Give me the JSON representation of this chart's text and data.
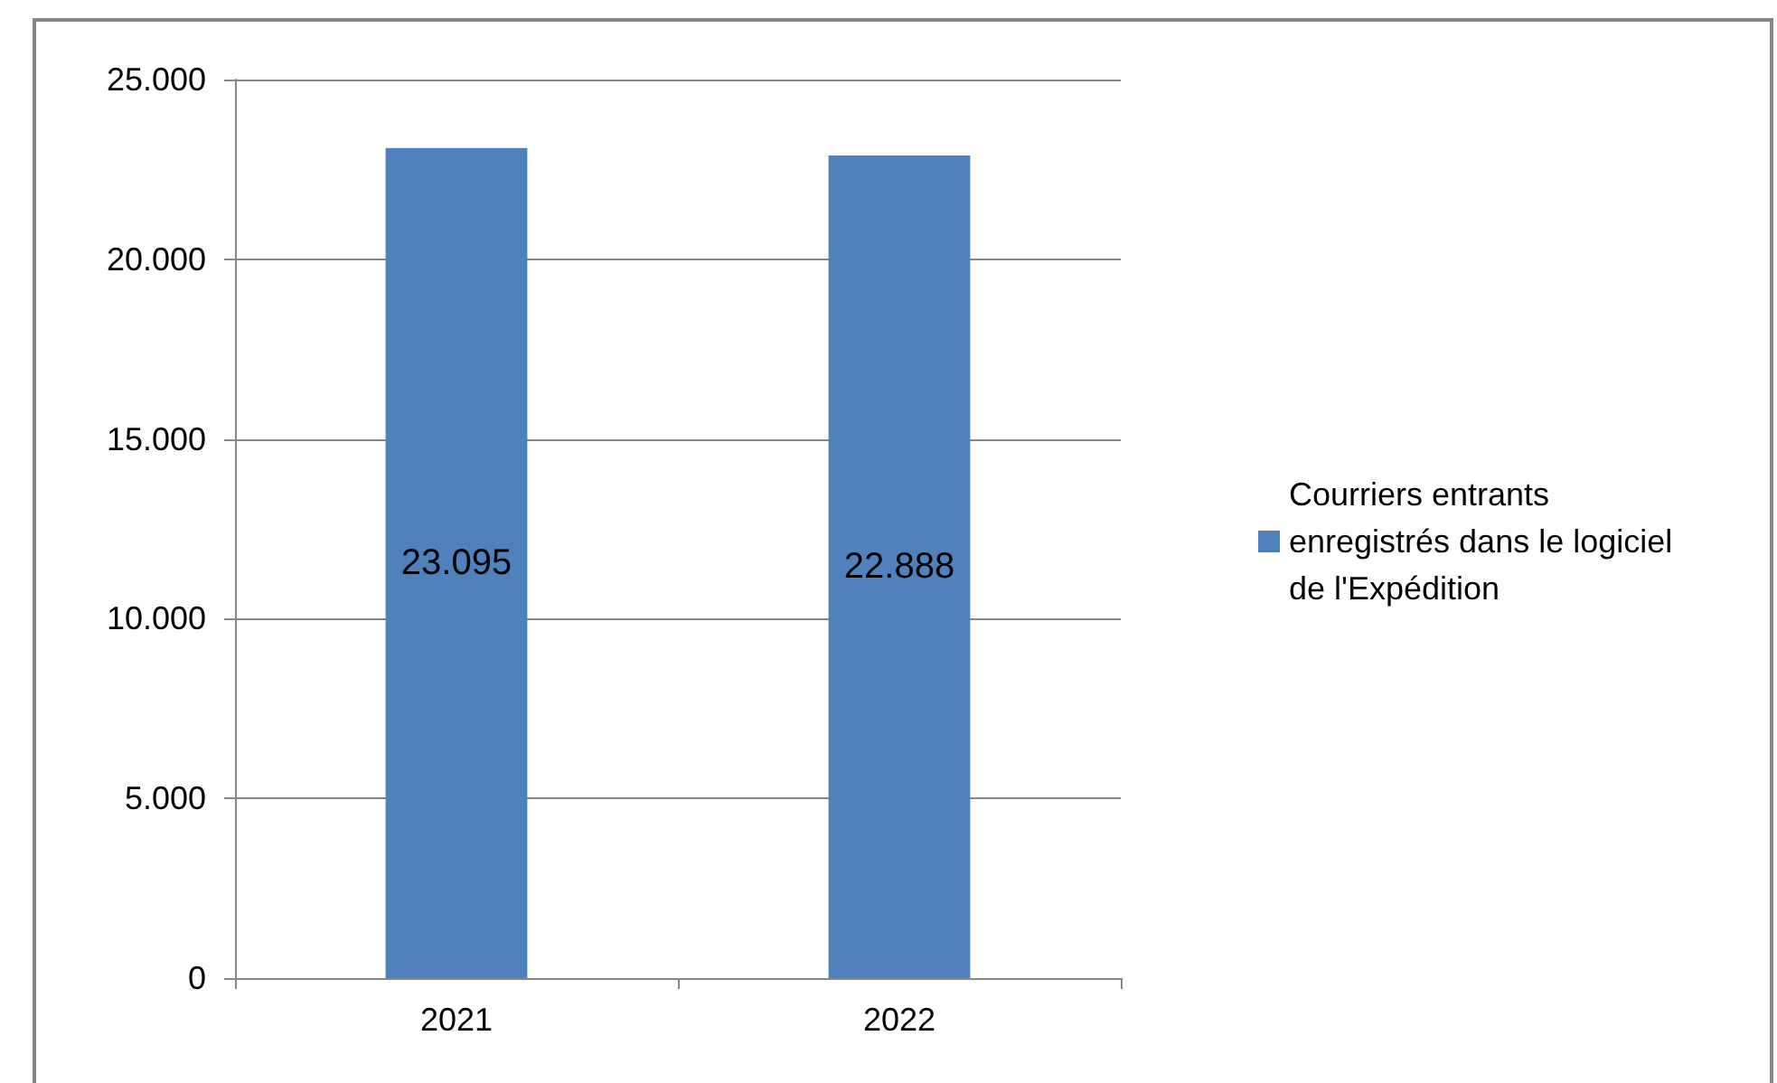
{
  "chart_data": {
    "type": "bar",
    "categories": [
      "2021",
      "2022"
    ],
    "series": [
      {
        "name": "Courriers entrants enregistrés dans le logiciel de l'Expédition",
        "color": "#4f81bd",
        "values": [
          23095,
          22888
        ],
        "value_labels": [
          "23.095",
          "22.888"
        ]
      }
    ],
    "ylim": [
      0,
      25000
    ],
    "yticks": [
      {
        "value": 0,
        "label": "0"
      },
      {
        "value": 5000,
        "label": "5.000"
      },
      {
        "value": 10000,
        "label": "10.000"
      },
      {
        "value": 15000,
        "label": "15.000"
      },
      {
        "value": 20000,
        "label": "20.000"
      },
      {
        "value": 25000,
        "label": "25.000"
      }
    ],
    "grid": "y",
    "legend": "right"
  }
}
